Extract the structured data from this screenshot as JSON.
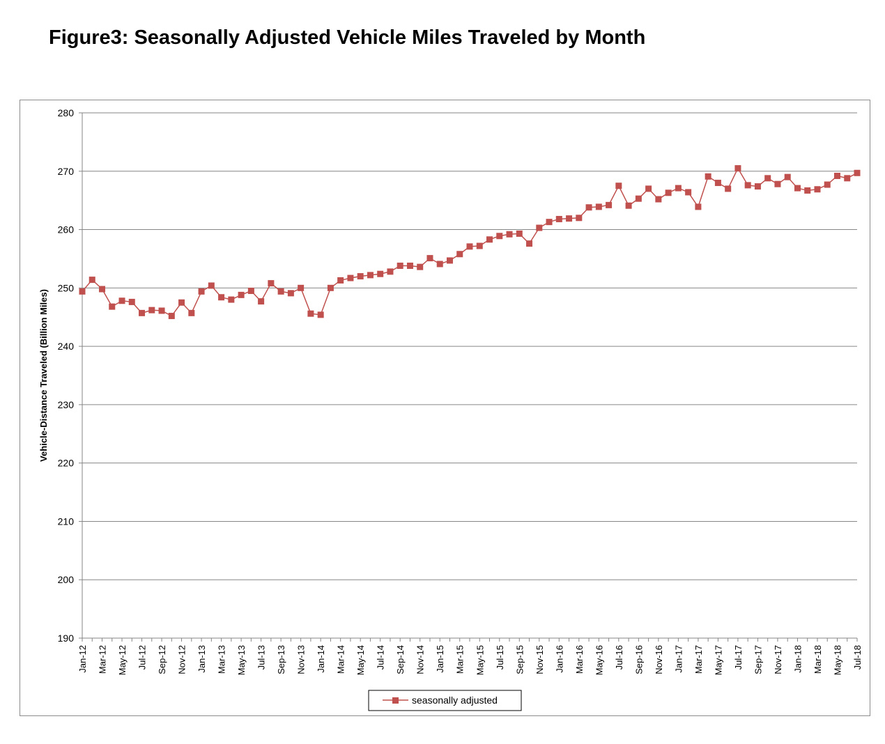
{
  "title": "Figure3: Seasonally Adjusted Vehicle Miles Traveled by Month",
  "chart_data": {
    "type": "line",
    "title": "",
    "xlabel": "",
    "ylabel": "Vehicle-Distance Traveled (Billion Miles)",
    "ylim": [
      190,
      280
    ],
    "yticks": [
      190,
      200,
      210,
      220,
      230,
      240,
      250,
      260,
      270,
      280
    ],
    "grid": "horizontal",
    "legend_position": "bottom-center",
    "x": [
      "Jan-12",
      "Feb-12",
      "Mar-12",
      "Apr-12",
      "May-12",
      "Jun-12",
      "Jul-12",
      "Aug-12",
      "Sep-12",
      "Oct-12",
      "Nov-12",
      "Dec-12",
      "Jan-13",
      "Feb-13",
      "Mar-13",
      "Apr-13",
      "May-13",
      "Jun-13",
      "Jul-13",
      "Aug-13",
      "Sep-13",
      "Oct-13",
      "Nov-13",
      "Dec-13",
      "Jan-14",
      "Feb-14",
      "Mar-14",
      "Apr-14",
      "May-14",
      "Jun-14",
      "Jul-14",
      "Aug-14",
      "Sep-14",
      "Oct-14",
      "Nov-14",
      "Dec-14",
      "Jan-15",
      "Feb-15",
      "Mar-15",
      "Apr-15",
      "May-15",
      "Jun-15",
      "Jul-15",
      "Aug-15",
      "Sep-15",
      "Oct-15",
      "Nov-15",
      "Dec-15",
      "Jan-16",
      "Feb-16",
      "Mar-16",
      "Apr-16",
      "May-16",
      "Jun-16",
      "Jul-16",
      "Aug-16",
      "Sep-16",
      "Oct-16",
      "Nov-16",
      "Dec-16",
      "Jan-17",
      "Feb-17",
      "Mar-17",
      "Apr-17",
      "May-17",
      "Jun-17",
      "Jul-17",
      "Aug-17",
      "Sep-17",
      "Oct-17",
      "Nov-17",
      "Dec-17",
      "Jan-18",
      "Feb-18",
      "Mar-18",
      "Apr-18",
      "May-18",
      "Jun-18",
      "Jul-18"
    ],
    "xtick_labels": [
      "Jan-12",
      "Mar-12",
      "May-12",
      "Jul-12",
      "Sep-12",
      "Nov-12",
      "Jan-13",
      "Mar-13",
      "May-13",
      "Jul-13",
      "Sep-13",
      "Nov-13",
      "Jan-14",
      "Mar-14",
      "May-14",
      "Jul-14",
      "Sep-14",
      "Nov-14",
      "Jan-15",
      "Mar-15",
      "May-15",
      "Jul-15",
      "Sep-15",
      "Nov-15",
      "Jan-16",
      "Mar-16",
      "May-16",
      "Jul-16",
      "Sep-16",
      "Nov-16",
      "Jan-17",
      "Mar-17",
      "May-17",
      "Jul-17",
      "Sep-17",
      "Nov-17",
      "Jan-18",
      "Mar-18",
      "May-18",
      "Jul-18"
    ],
    "series": [
      {
        "name": "seasonally adjusted",
        "color": "#c0504d",
        "marker": "square",
        "values": [
          249.4,
          251.4,
          249.8,
          246.8,
          247.8,
          247.6,
          245.7,
          246.2,
          246.1,
          245.2,
          247.5,
          245.7,
          249.4,
          250.4,
          248.4,
          248.0,
          248.8,
          249.5,
          247.7,
          250.8,
          249.4,
          249.1,
          250.0,
          245.6,
          245.4,
          250.0,
          251.3,
          251.7,
          252.0,
          252.2,
          252.4,
          252.8,
          253.8,
          253.8,
          253.6,
          255.1,
          254.1,
          254.7,
          255.8,
          257.1,
          257.2,
          258.3,
          258.9,
          259.2,
          259.3,
          257.6,
          260.3,
          261.3,
          261.8,
          261.9,
          262.0,
          263.8,
          263.9,
          264.2,
          267.5,
          264.1,
          265.3,
          267.0,
          265.2,
          266.3,
          267.1,
          266.4,
          263.9,
          269.1,
          268.0,
          267.0,
          270.5,
          267.6,
          267.4,
          268.8,
          267.8,
          269.0,
          267.1,
          266.7,
          266.9,
          267.7,
          269.2,
          268.8,
          269.7
        ]
      }
    ]
  }
}
